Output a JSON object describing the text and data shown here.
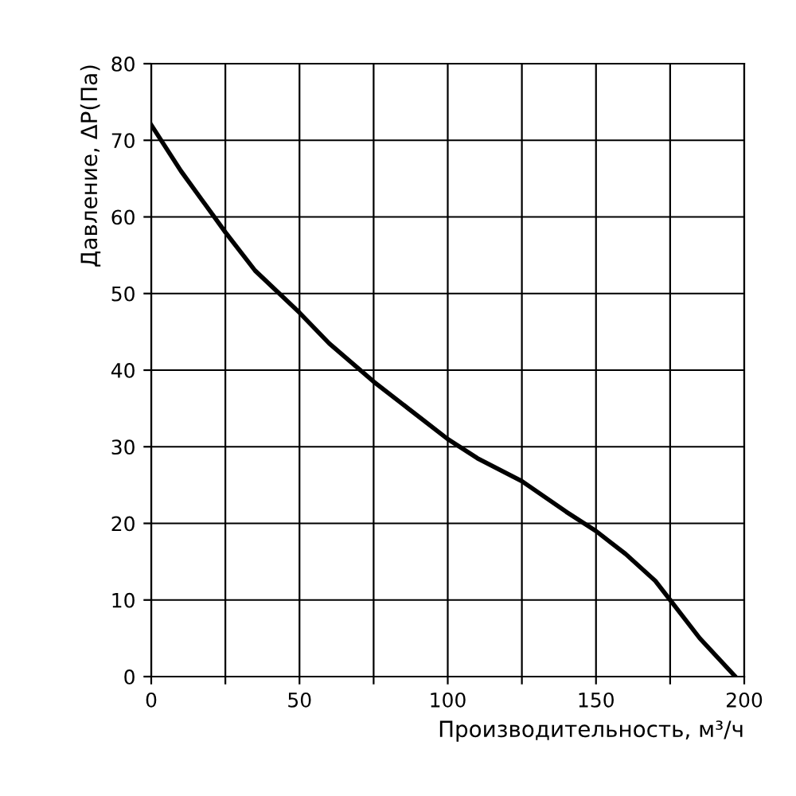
{
  "chart_data": {
    "type": "line",
    "xlabel": "Производительность, м³/ч",
    "ylabel": "Давление, ΔP(Па)",
    "x": [
      0,
      10,
      25,
      35,
      50,
      60,
      75,
      90,
      100,
      110,
      125,
      140,
      150,
      160,
      170,
      175,
      185,
      197
    ],
    "series": [
      {
        "color": "#000000",
        "values": [
          72,
          66,
          58,
          53,
          47.5,
          43.5,
          38.5,
          34,
          31,
          28.5,
          25.5,
          21.5,
          19,
          16,
          12.5,
          10,
          5,
          0
        ]
      }
    ],
    "xlim": [
      0,
      200
    ],
    "ylim": [
      0,
      80
    ],
    "xticks": [
      0,
      {
        "value": 25,
        "label": null
      },
      50,
      {
        "value": 75,
        "label": null
      },
      100,
      {
        "value": 125,
        "label": null
      },
      150,
      {
        "value": 175,
        "label": null
      },
      200
    ],
    "yticks": [
      0,
      10,
      20,
      30,
      40,
      50,
      60,
      70,
      80
    ],
    "grid": true,
    "line_style": "solid",
    "marker": "none"
  }
}
